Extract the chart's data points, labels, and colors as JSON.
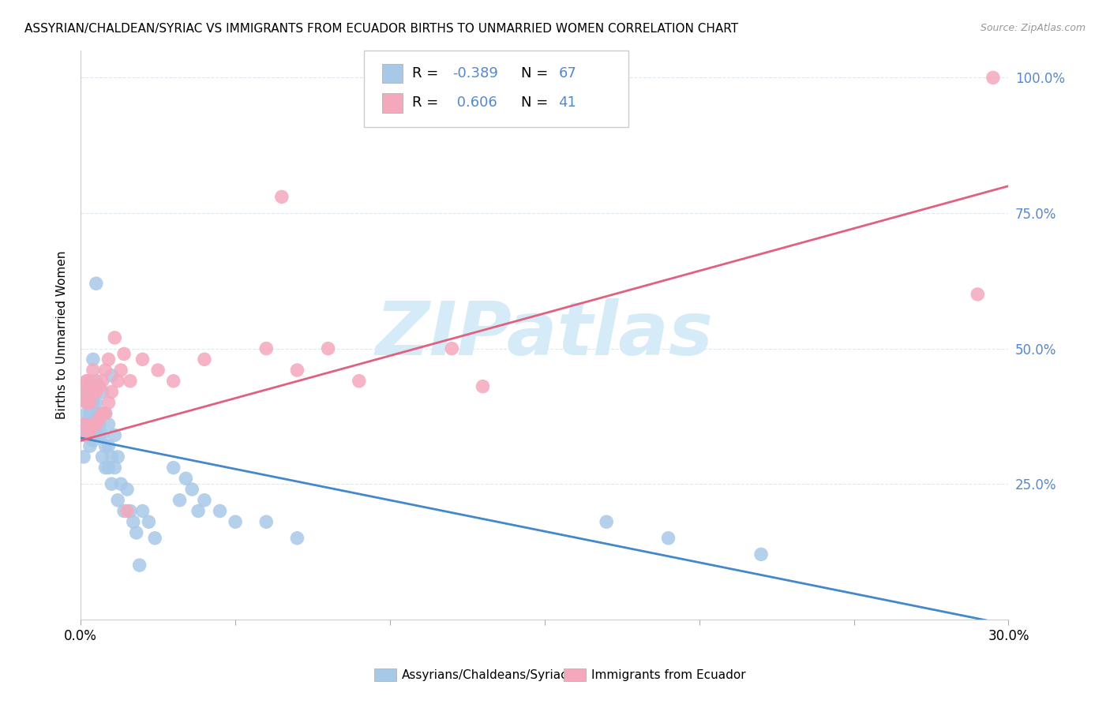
{
  "title": "ASSYRIAN/CHALDEAN/SYRIAC VS IMMIGRANTS FROM ECUADOR BIRTHS TO UNMARRIED WOMEN CORRELATION CHART",
  "source": "Source: ZipAtlas.com",
  "ylabel": "Births to Unmarried Women",
  "blue_R": -0.389,
  "blue_N": 67,
  "pink_R": 0.606,
  "pink_N": 41,
  "blue_color": "#a8c8e8",
  "pink_color": "#f5a8bc",
  "blue_line_color": "#4488cc",
  "pink_line_color": "#e06080",
  "right_axis_color": "#5588cc",
  "background_color": "#ffffff",
  "watermark_text": "ZIPatlas",
  "watermark_color": "#d5ecf8",
  "legend_label_blue": "Assyrians/Chaldeans/Syriacs",
  "legend_label_pink": "Immigrants from Ecuador",
  "xlim": [
    0.0,
    0.3
  ],
  "ylim": [
    0.0,
    1.05
  ],
  "ytick_positions": [
    0.25,
    0.5,
    0.75,
    1.0
  ],
  "ytick_labels": [
    "25.0%",
    "50.0%",
    "75.0%",
    "100.0%"
  ],
  "blue_line_x0": 0.0,
  "blue_line_y0": 0.335,
  "blue_line_x1": 0.3,
  "blue_line_y1": -0.01,
  "pink_line_x0": 0.0,
  "pink_line_y0": 0.33,
  "pink_line_x1": 0.3,
  "pink_line_y1": 0.8,
  "blue_points_x": [
    0.001,
    0.001,
    0.001,
    0.001,
    0.002,
    0.002,
    0.002,
    0.002,
    0.002,
    0.002,
    0.003,
    0.003,
    0.003,
    0.003,
    0.003,
    0.004,
    0.004,
    0.004,
    0.004,
    0.005,
    0.005,
    0.005,
    0.005,
    0.005,
    0.006,
    0.006,
    0.006,
    0.007,
    0.007,
    0.007,
    0.007,
    0.008,
    0.008,
    0.008,
    0.009,
    0.009,
    0.009,
    0.01,
    0.01,
    0.01,
    0.011,
    0.011,
    0.012,
    0.012,
    0.013,
    0.014,
    0.015,
    0.016,
    0.017,
    0.018,
    0.019,
    0.02,
    0.022,
    0.024,
    0.03,
    0.032,
    0.034,
    0.036,
    0.038,
    0.04,
    0.045,
    0.05,
    0.06,
    0.07,
    0.17,
    0.19,
    0.22
  ],
  "blue_points_y": [
    0.34,
    0.36,
    0.3,
    0.42,
    0.34,
    0.36,
    0.38,
    0.4,
    0.42,
    0.44,
    0.32,
    0.35,
    0.38,
    0.4,
    0.43,
    0.33,
    0.36,
    0.4,
    0.48,
    0.34,
    0.37,
    0.4,
    0.44,
    0.62,
    0.34,
    0.36,
    0.38,
    0.3,
    0.34,
    0.38,
    0.42,
    0.28,
    0.32,
    0.38,
    0.28,
    0.32,
    0.36,
    0.25,
    0.3,
    0.45,
    0.28,
    0.34,
    0.22,
    0.3,
    0.25,
    0.2,
    0.24,
    0.2,
    0.18,
    0.16,
    0.1,
    0.2,
    0.18,
    0.15,
    0.28,
    0.22,
    0.26,
    0.24,
    0.2,
    0.22,
    0.2,
    0.18,
    0.18,
    0.15,
    0.18,
    0.15,
    0.12
  ],
  "pink_points_x": [
    0.001,
    0.001,
    0.002,
    0.002,
    0.002,
    0.003,
    0.003,
    0.003,
    0.004,
    0.004,
    0.004,
    0.005,
    0.005,
    0.006,
    0.006,
    0.007,
    0.007,
    0.008,
    0.008,
    0.009,
    0.009,
    0.01,
    0.011,
    0.012,
    0.013,
    0.014,
    0.015,
    0.016,
    0.02,
    0.025,
    0.03,
    0.04,
    0.06,
    0.065,
    0.07,
    0.08,
    0.09,
    0.12,
    0.13,
    0.29,
    0.295
  ],
  "pink_points_y": [
    0.36,
    0.42,
    0.34,
    0.4,
    0.44,
    0.35,
    0.4,
    0.44,
    0.36,
    0.42,
    0.46,
    0.36,
    0.42,
    0.37,
    0.43,
    0.38,
    0.44,
    0.38,
    0.46,
    0.4,
    0.48,
    0.42,
    0.52,
    0.44,
    0.46,
    0.49,
    0.2,
    0.44,
    0.48,
    0.46,
    0.44,
    0.48,
    0.5,
    0.78,
    0.46,
    0.5,
    0.44,
    0.5,
    0.43,
    0.6,
    1.0
  ]
}
